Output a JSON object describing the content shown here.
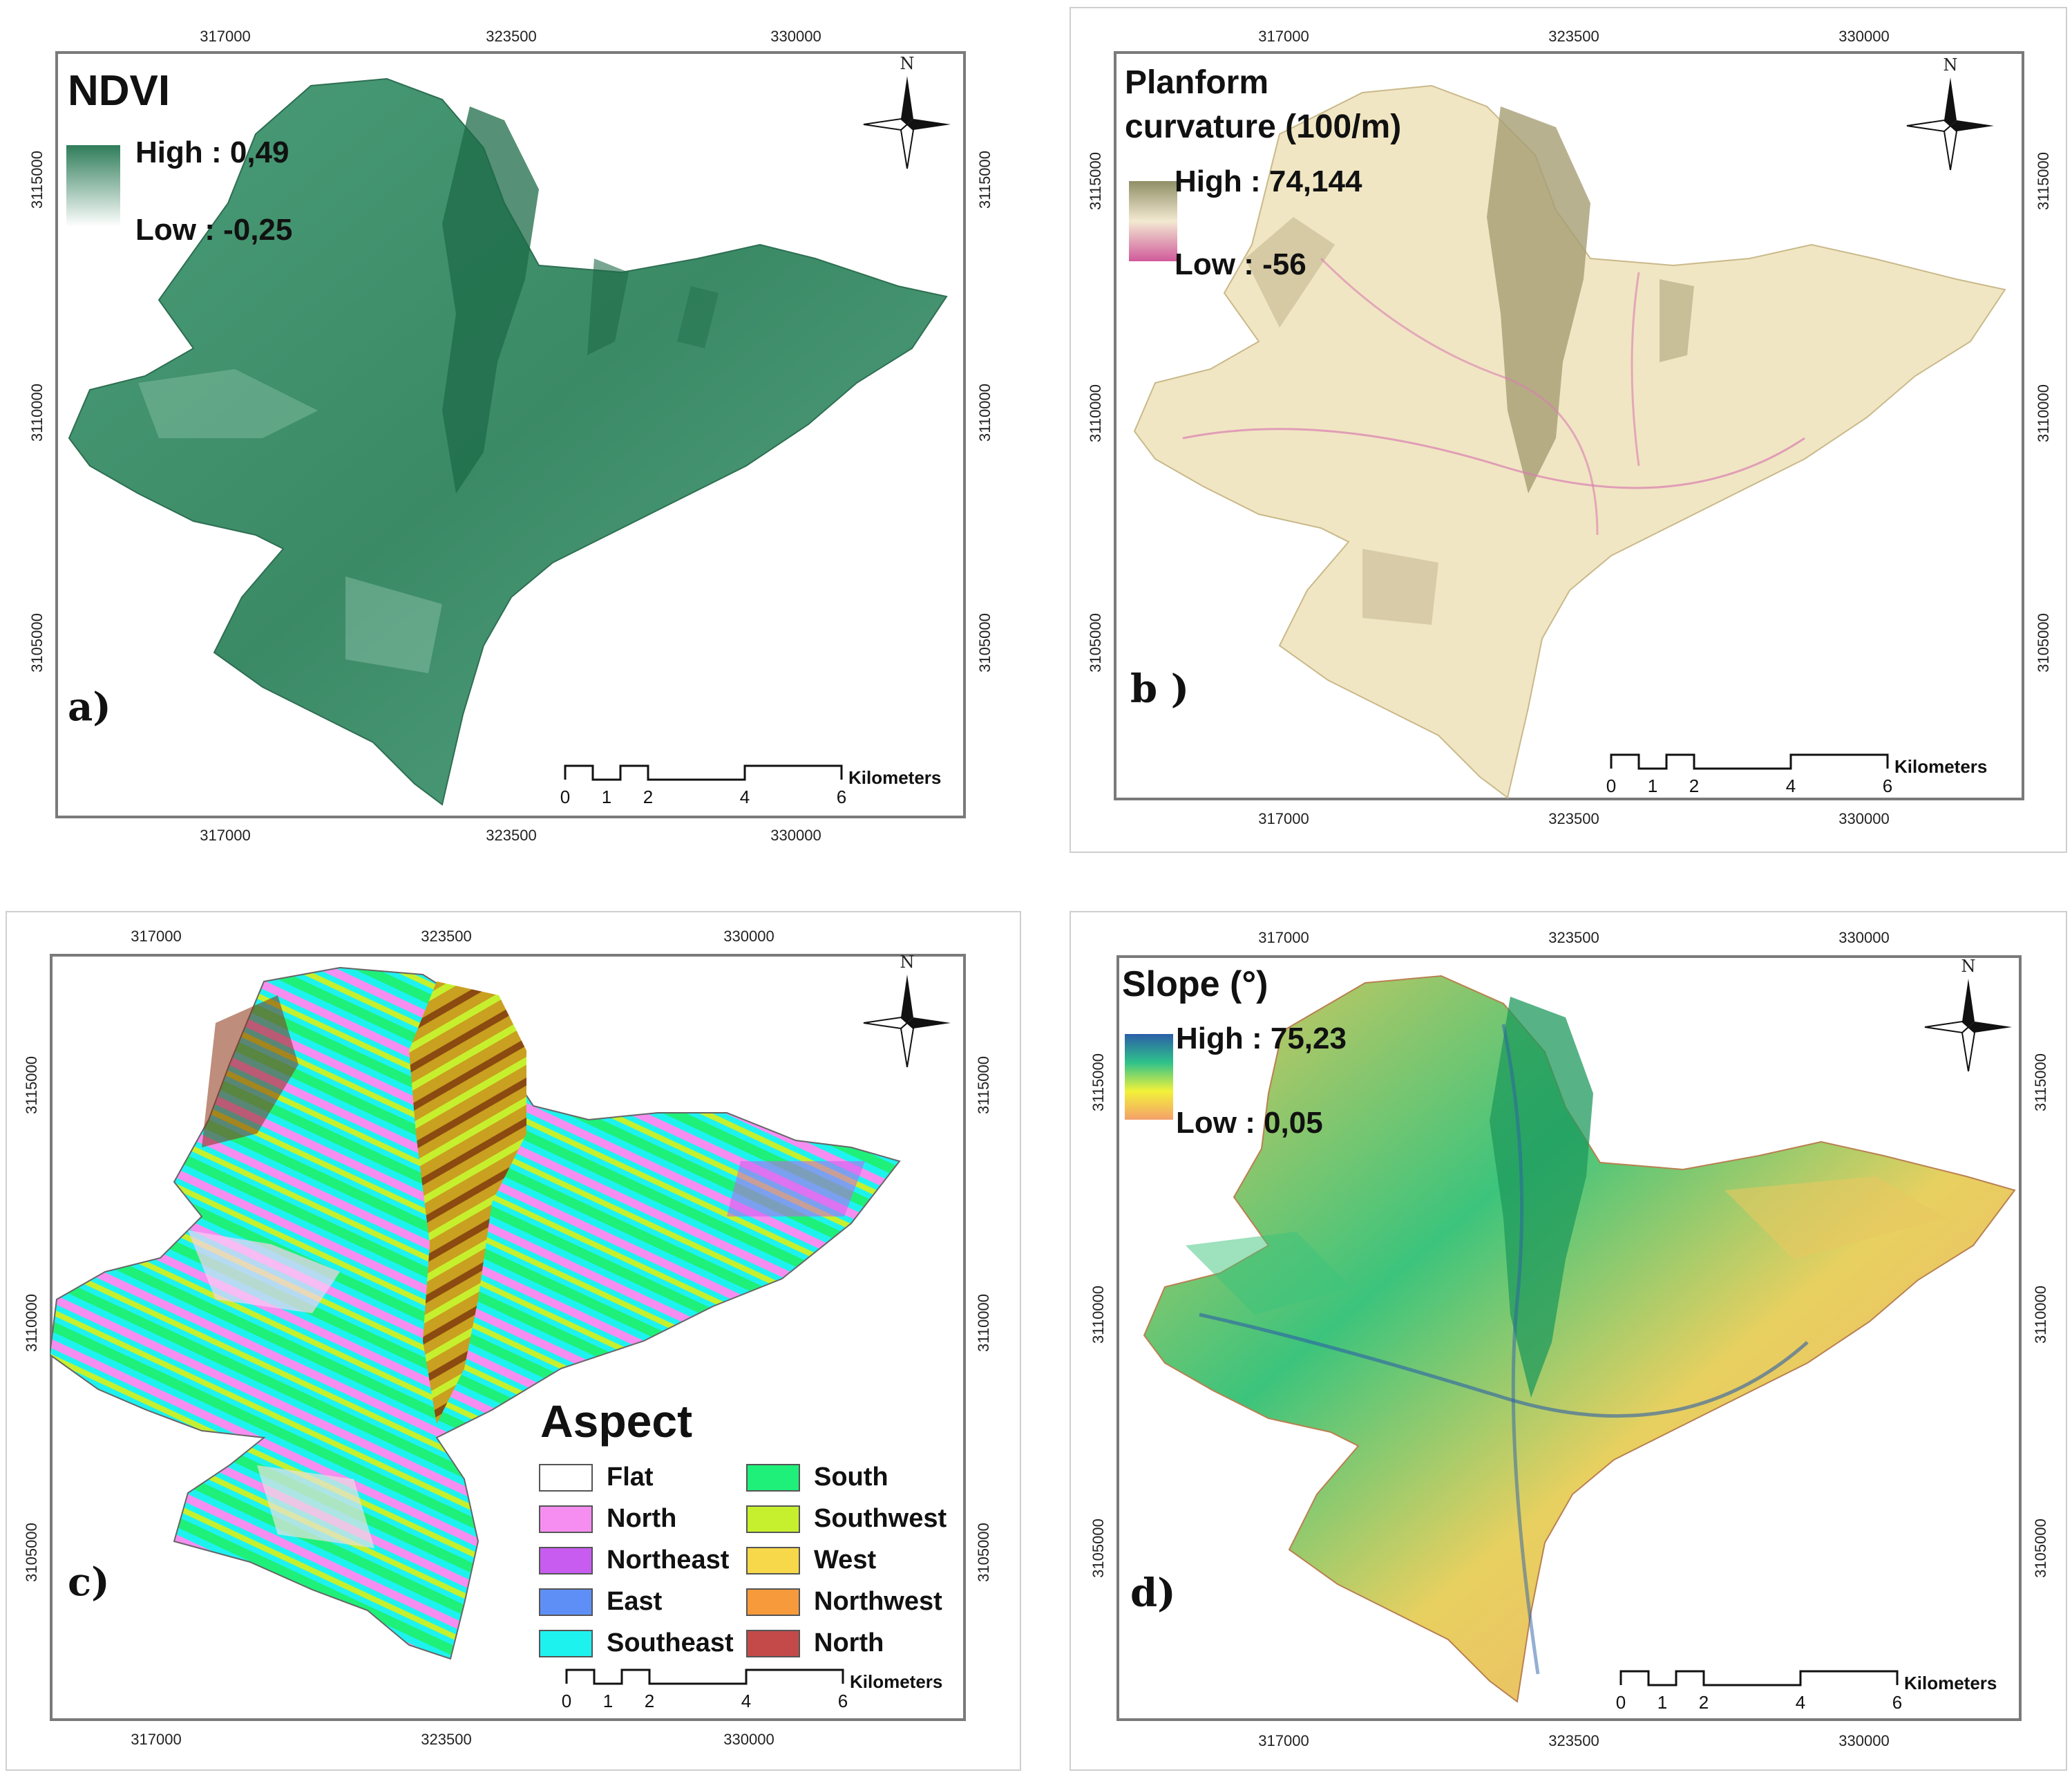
{
  "panels": [
    {
      "id": "a",
      "label": "a)",
      "title": "NDVI",
      "legend": {
        "high": "High : 0,49",
        "low": "Low : -0,25",
        "colors": [
          "#2f7d5a",
          "#ffffff"
        ]
      },
      "x_ticks": [
        "317000",
        "323500",
        "330000"
      ],
      "y_ticks": [
        "3115000",
        "3110000",
        "3105000"
      ],
      "scale": {
        "labels": [
          "0",
          "1",
          "2",
          "4",
          "6"
        ],
        "unit": "Kilometers"
      },
      "north": "N",
      "fill": "#3f8f6b",
      "fill_dark": "#1e6b48"
    },
    {
      "id": "b",
      "label": "b )",
      "title_lines": [
        "Planform",
        "curvature (100/m)"
      ],
      "legend": {
        "high": "High : 74,144",
        "low": "Low : -56",
        "colors": [
          "#8f8f66",
          "#f3e9d2",
          "#d05a9a"
        ]
      },
      "x_ticks": [
        "317000",
        "323500",
        "330000"
      ],
      "y_ticks": [
        "3115000",
        "3110000",
        "3105000"
      ],
      "scale": {
        "labels": [
          "0",
          "1",
          "2",
          "4",
          "6"
        ],
        "unit": "Kilometers"
      },
      "north": "N",
      "fill": "#f1e6c3",
      "fill_dark": "#a69e74"
    },
    {
      "id": "c",
      "label": "c)",
      "legend_title": "Aspect",
      "aspect_classes": [
        {
          "label": "Flat",
          "color": "#ffffff"
        },
        {
          "label": "North",
          "color": "#f58ef0"
        },
        {
          "label": "Northeast",
          "color": "#c85cf0"
        },
        {
          "label": "East",
          "color": "#5e8ff7"
        },
        {
          "label": "Southeast",
          "color": "#1ef2ef"
        },
        {
          "label": "South",
          "color": "#1ef07a"
        },
        {
          "label": "Southwest",
          "color": "#c6f02e"
        },
        {
          "label": "West",
          "color": "#f7d84a"
        },
        {
          "label": "Northwest",
          "color": "#f79a3c"
        },
        {
          "label": "North",
          "color": "#c44a4a"
        }
      ],
      "x_ticks": [
        "317000",
        "323500",
        "330000"
      ],
      "y_ticks": [
        "3115000",
        "3110000",
        "3105000"
      ],
      "scale": {
        "labels": [
          "0",
          "1",
          "2",
          "4",
          "6"
        ],
        "unit": "Kilometers"
      },
      "north": "N"
    },
    {
      "id": "d",
      "label": "d)",
      "title": "Slope (°)",
      "legend": {
        "high": "High : 75,23",
        "low": "Low : 0,05",
        "colors": [
          "#2b5fa8",
          "#2fc28a",
          "#f2f23a",
          "#f4a06a"
        ]
      },
      "x_ticks": [
        "317000",
        "323500",
        "330000"
      ],
      "y_ticks": [
        "3115000",
        "3110000",
        "3105000"
      ],
      "scale": {
        "labels": [
          "0",
          "1",
          "2",
          "4",
          "6"
        ],
        "unit": "Kilometers"
      },
      "north": "N",
      "fill": "#3cc47c",
      "fill_dark": "#e6c95c"
    }
  ]
}
